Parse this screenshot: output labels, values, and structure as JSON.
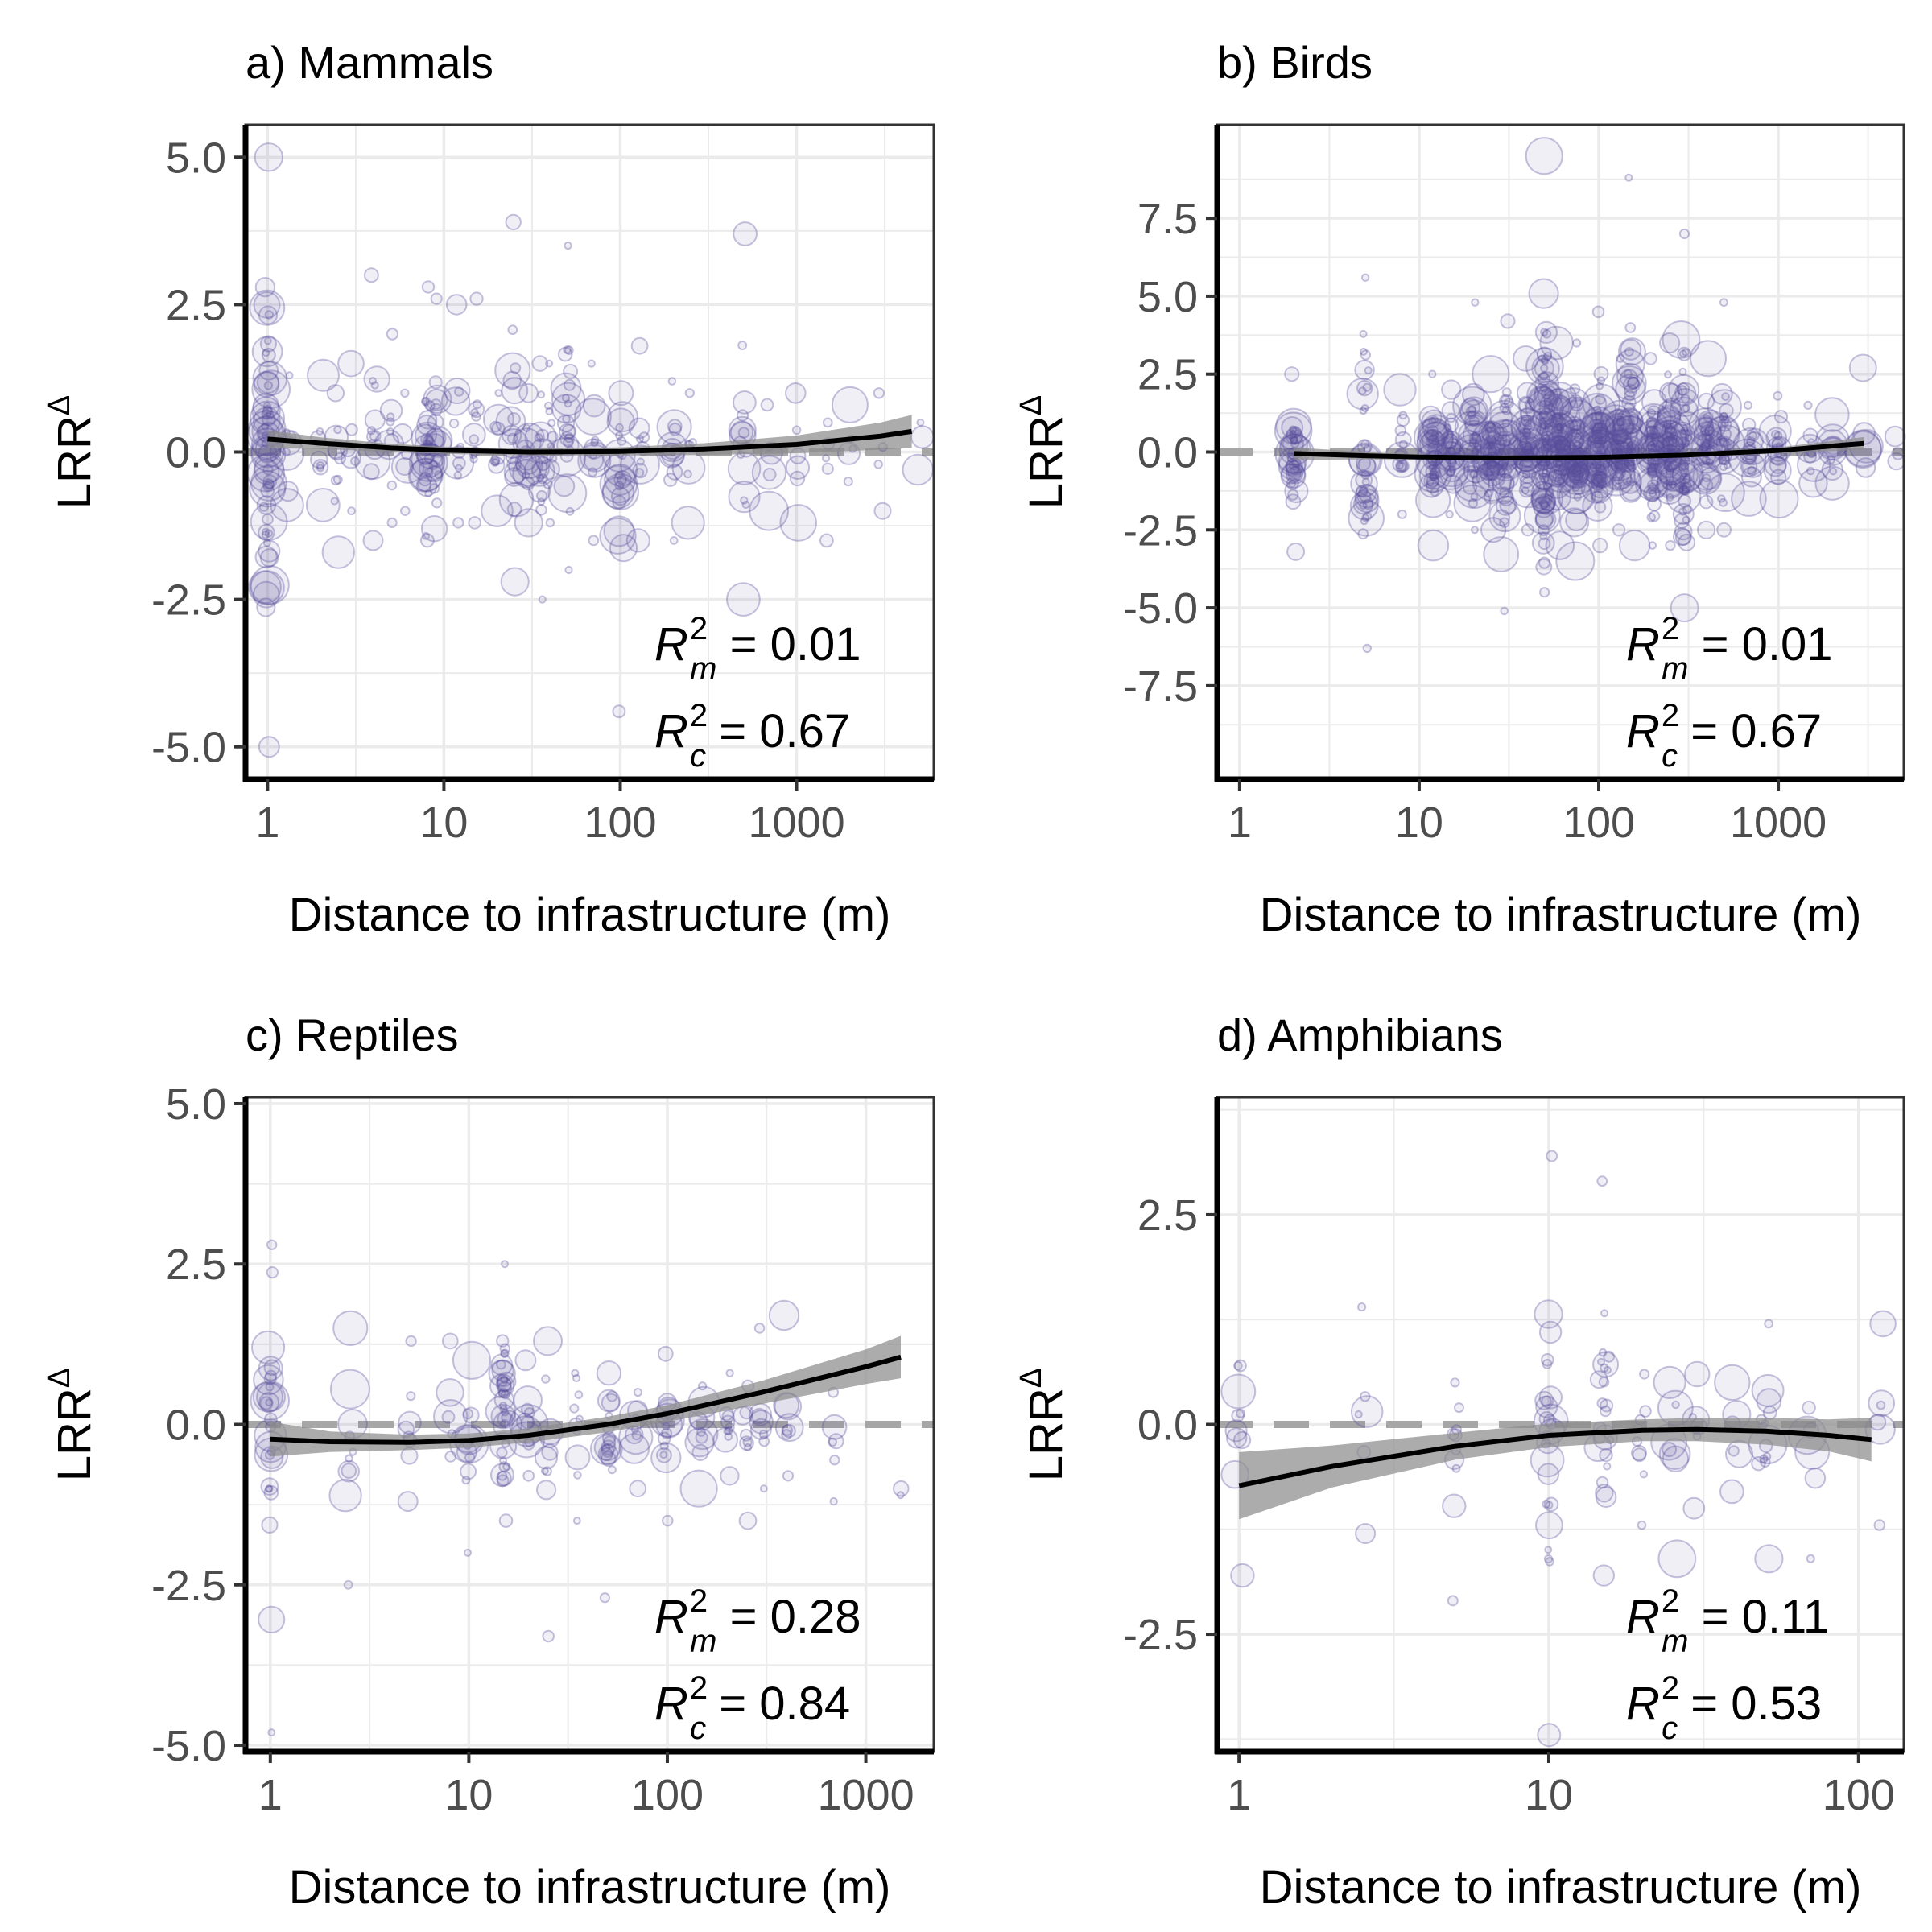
{
  "figure": {
    "colors": {
      "points": "#5a4f9e",
      "fit_line": "#000000",
      "ribbon": "#8c8c8c",
      "reference_line": "#a6a6a6",
      "grid": "#ebebeb",
      "axis": "#000000",
      "tick_label": "#4d4d4d"
    }
  },
  "chart_data": [
    {
      "panel": "a",
      "type": "scatter",
      "title": "a) Mammals",
      "xlabel": "Distance to infrastructure (m)",
      "ylabel": "LRR",
      "ylabel_superscript": "Δ",
      "x_scale": "log10",
      "xlim": [
        0.75,
        6000
      ],
      "ylim": [
        -5.55,
        5.55
      ],
      "x_ticks": [
        1,
        10,
        100,
        1000
      ],
      "x_tick_labels": [
        "1",
        "10",
        "100",
        "1000"
      ],
      "y_ticks": [
        -5,
        -2.5,
        0,
        2.5,
        5
      ],
      "y_tick_labels": [
        "-5.0",
        "-2.5",
        "0.0",
        "2.5",
        "5.0"
      ],
      "reference_line_y": 0,
      "fit": {
        "x": [
          1,
          2,
          5,
          10,
          30,
          100,
          300,
          1000,
          3000,
          4500
        ],
        "y": [
          0.22,
          0.15,
          0.07,
          0.03,
          0.0,
          0.01,
          0.05,
          0.13,
          0.27,
          0.35
        ],
        "lower": [
          0.07,
          0.05,
          0.0,
          -0.03,
          -0.06,
          -0.06,
          -0.05,
          -0.02,
          0.04,
          0.07
        ],
        "upper": [
          0.37,
          0.25,
          0.14,
          0.09,
          0.06,
          0.08,
          0.15,
          0.28,
          0.5,
          0.63
        ]
      },
      "annotations": {
        "r2m_label": "R",
        "r2m_sub": "m",
        "r2m_sup": "2",
        "r2m_value": " = 0.01",
        "r2c_label": "R",
        "r2c_sub": "c",
        "r2c_sup": "2",
        "r2c_value": " = 0.67"
      },
      "point_clusters": [
        {
          "x": 1,
          "y_min": -5.0,
          "y_max": 5.0,
          "n": 70
        },
        {
          "x": 1.3,
          "y_min": -0.9,
          "y_max": 1.3,
          "n": 8
        },
        {
          "x": 2,
          "y_min": -0.9,
          "y_max": 1.3,
          "n": 8
        },
        {
          "x": 2.5,
          "y_min": -1.7,
          "y_max": 1.0,
          "n": 10
        },
        {
          "x": 3,
          "y_min": -1.0,
          "y_max": 1.5,
          "n": 6
        },
        {
          "x": 4,
          "y_min": -1.5,
          "y_max": 3.0,
          "n": 12
        },
        {
          "x": 5,
          "y_min": -1.2,
          "y_max": 2.0,
          "n": 10
        },
        {
          "x": 6,
          "y_min": -1.0,
          "y_max": 1.0,
          "n": 6
        },
        {
          "x": 8,
          "y_min": -1.5,
          "y_max": 2.8,
          "n": 30
        },
        {
          "x": 9,
          "y_min": -1.3,
          "y_max": 2.6,
          "n": 20
        },
        {
          "x": 12,
          "y_min": -1.2,
          "y_max": 2.5,
          "n": 12
        },
        {
          "x": 15,
          "y_min": -1.2,
          "y_max": 2.6,
          "n": 12
        },
        {
          "x": 20,
          "y_min": -1.0,
          "y_max": 1.0,
          "n": 10
        },
        {
          "x": 25,
          "y_min": -2.2,
          "y_max": 3.9,
          "n": 18
        },
        {
          "x": 30,
          "y_min": -1.2,
          "y_max": 1.0,
          "n": 14
        },
        {
          "x": 35,
          "y_min": -2.5,
          "y_max": 1.5,
          "n": 16
        },
        {
          "x": 40,
          "y_min": -1.2,
          "y_max": 1.5,
          "n": 10
        },
        {
          "x": 50,
          "y_min": -2.0,
          "y_max": 3.5,
          "n": 26
        },
        {
          "x": 70,
          "y_min": -1.5,
          "y_max": 1.5,
          "n": 12
        },
        {
          "x": 100,
          "y_min": -4.4,
          "y_max": 1.0,
          "n": 24
        },
        {
          "x": 130,
          "y_min": -1.5,
          "y_max": 1.8,
          "n": 10
        },
        {
          "x": 200,
          "y_min": -1.5,
          "y_max": 1.2,
          "n": 14
        },
        {
          "x": 250,
          "y_min": -1.2,
          "y_max": 1.0,
          "n": 8
        },
        {
          "x": 500,
          "y_min": -2.5,
          "y_max": 3.7,
          "n": 16
        },
        {
          "x": 700,
          "y_min": -1.0,
          "y_max": 0.8,
          "n": 6
        },
        {
          "x": 1000,
          "y_min": -1.2,
          "y_max": 1.0,
          "n": 6
        },
        {
          "x": 1500,
          "y_min": -1.5,
          "y_max": 0.5,
          "n": 5
        },
        {
          "x": 2000,
          "y_min": -0.5,
          "y_max": 0.8,
          "n": 5
        },
        {
          "x": 3000,
          "y_min": -1.0,
          "y_max": 1.0,
          "n": 4
        },
        {
          "x": 5000,
          "y_min": -0.3,
          "y_max": 0.5,
          "n": 3
        }
      ]
    },
    {
      "panel": "b",
      "type": "scatter",
      "title": "b) Birds",
      "xlabel": "Distance to infrastructure (m)",
      "ylabel": "LRR",
      "ylabel_superscript": "Δ",
      "x_scale": "log10",
      "xlim": [
        0.75,
        5000
      ],
      "ylim": [
        -10.5,
        10.5
      ],
      "x_ticks": [
        1,
        10,
        100,
        1000
      ],
      "x_tick_labels": [
        "1",
        "10",
        "100",
        "1000"
      ],
      "y_ticks": [
        -7.5,
        -5,
        -2.5,
        0,
        2.5,
        5,
        7.5
      ],
      "y_tick_labels": [
        "-7.5",
        "-5.0",
        "-2.5",
        "0.0",
        "2.5",
        "5.0",
        "7.5"
      ],
      "reference_line_y": 0,
      "fit": {
        "x": [
          2,
          5,
          10,
          30,
          100,
          300,
          1000,
          3000
        ],
        "y": [
          -0.05,
          -0.12,
          -0.16,
          -0.19,
          -0.17,
          -0.1,
          0.05,
          0.28
        ],
        "lower": [
          -0.25,
          -0.24,
          -0.24,
          -0.25,
          -0.23,
          -0.17,
          -0.05,
          0.08
        ],
        "upper": [
          0.15,
          0.0,
          -0.08,
          -0.13,
          -0.11,
          -0.03,
          0.15,
          0.48
        ]
      },
      "annotations": {
        "r2m_label": "R",
        "r2m_sub": "m",
        "r2m_sup": "2",
        "r2m_value": " = 0.01",
        "r2c_label": "R",
        "r2c_sub": "c",
        "r2c_sup": "2",
        "r2c_value": " = 0.67"
      },
      "point_clusters": [
        {
          "x": 2,
          "y_min": -3.2,
          "y_max": 2.5,
          "n": 40
        },
        {
          "x": 5,
          "y_min": -6.3,
          "y_max": 5.6,
          "n": 40
        },
        {
          "x": 8,
          "y_min": -2.0,
          "y_max": 2.0,
          "n": 15
        },
        {
          "x": 12,
          "y_min": -3.0,
          "y_max": 2.5,
          "n": 50
        },
        {
          "x": 15,
          "y_min": -2.0,
          "y_max": 2.0,
          "n": 30
        },
        {
          "x": 20,
          "y_min": -2.5,
          "y_max": 4.8,
          "n": 40
        },
        {
          "x": 25,
          "y_min": -2.5,
          "y_max": 2.5,
          "n": 40
        },
        {
          "x": 30,
          "y_min": -5.1,
          "y_max": 4.2,
          "n": 40
        },
        {
          "x": 40,
          "y_min": -2.5,
          "y_max": 3.0,
          "n": 50
        },
        {
          "x": 50,
          "y_min": -4.5,
          "y_max": 9.5,
          "n": 90
        },
        {
          "x": 60,
          "y_min": -3.0,
          "y_max": 3.5,
          "n": 60
        },
        {
          "x": 75,
          "y_min": -3.5,
          "y_max": 3.5,
          "n": 60
        },
        {
          "x": 100,
          "y_min": -3.0,
          "y_max": 4.5,
          "n": 80
        },
        {
          "x": 130,
          "y_min": -2.5,
          "y_max": 3.0,
          "n": 50
        },
        {
          "x": 150,
          "y_min": -3.0,
          "y_max": 8.8,
          "n": 50
        },
        {
          "x": 200,
          "y_min": -3.0,
          "y_max": 3.0,
          "n": 60
        },
        {
          "x": 250,
          "y_min": -3.0,
          "y_max": 3.5,
          "n": 60
        },
        {
          "x": 300,
          "y_min": -5.0,
          "y_max": 7.0,
          "n": 60
        },
        {
          "x": 400,
          "y_min": -2.5,
          "y_max": 3.0,
          "n": 40
        },
        {
          "x": 500,
          "y_min": -2.5,
          "y_max": 4.8,
          "n": 30
        },
        {
          "x": 700,
          "y_min": -1.5,
          "y_max": 1.5,
          "n": 20
        },
        {
          "x": 1000,
          "y_min": -1.5,
          "y_max": 1.8,
          "n": 20
        },
        {
          "x": 1500,
          "y_min": -1.0,
          "y_max": 1.5,
          "n": 12
        },
        {
          "x": 2000,
          "y_min": -1.0,
          "y_max": 1.2,
          "n": 10
        },
        {
          "x": 3000,
          "y_min": -0.5,
          "y_max": 2.7,
          "n": 6
        },
        {
          "x": 4500,
          "y_min": -0.3,
          "y_max": 0.5,
          "n": 3
        }
      ]
    },
    {
      "panel": "c",
      "type": "scatter",
      "title": "c) Reptiles",
      "xlabel": "Distance to infrastructure (m)",
      "ylabel": "LRR",
      "ylabel_superscript": "Δ",
      "x_scale": "log10",
      "xlim": [
        0.75,
        2200
      ],
      "ylim": [
        -5.1,
        5.1
      ],
      "x_ticks": [
        1,
        10,
        100,
        1000
      ],
      "x_tick_labels": [
        "1",
        "10",
        "100",
        "1000"
      ],
      "y_ticks": [
        -5,
        -2.5,
        0,
        2.5,
        5
      ],
      "y_tick_labels": [
        "-5.0",
        "-2.5",
        "0.0",
        "2.5",
        "5.0"
      ],
      "reference_line_y": 0,
      "fit": {
        "x": [
          1,
          2,
          5,
          10,
          20,
          50,
          100,
          300,
          1000,
          1500
        ],
        "y": [
          -0.23,
          -0.27,
          -0.28,
          -0.25,
          -0.17,
          0.0,
          0.17,
          0.5,
          0.9,
          1.05
        ],
        "lower": [
          -0.5,
          -0.43,
          -0.4,
          -0.36,
          -0.28,
          -0.12,
          0.04,
          0.32,
          0.63,
          0.72
        ],
        "upper": [
          0.04,
          -0.11,
          -0.16,
          -0.14,
          -0.06,
          0.12,
          0.3,
          0.68,
          1.17,
          1.38
        ]
      },
      "annotations": {
        "r2m_label": "R",
        "r2m_sub": "m",
        "r2m_sup": "2",
        "r2m_value": " = 0.28",
        "r2c_label": "R",
        "r2c_sub": "c",
        "r2c_sup": "2",
        "r2c_value": " = 0.84"
      },
      "point_clusters": [
        {
          "x": 1,
          "y_min": -4.8,
          "y_max": 2.8,
          "n": 30
        },
        {
          "x": 2.5,
          "y_min": -2.5,
          "y_max": 1.5,
          "n": 10
        },
        {
          "x": 5,
          "y_min": -1.2,
          "y_max": 1.3,
          "n": 8
        },
        {
          "x": 8,
          "y_min": -0.5,
          "y_max": 1.3,
          "n": 6
        },
        {
          "x": 10,
          "y_min": -2.0,
          "y_max": 1.0,
          "n": 12
        },
        {
          "x": 15,
          "y_min": -1.5,
          "y_max": 2.5,
          "n": 40
        },
        {
          "x": 20,
          "y_min": -0.8,
          "y_max": 1.0,
          "n": 12
        },
        {
          "x": 25,
          "y_min": -3.3,
          "y_max": 1.3,
          "n": 10
        },
        {
          "x": 35,
          "y_min": -1.5,
          "y_max": 0.8,
          "n": 10
        },
        {
          "x": 50,
          "y_min": -2.7,
          "y_max": 0.8,
          "n": 18
        },
        {
          "x": 70,
          "y_min": -1.0,
          "y_max": 0.5,
          "n": 10
        },
        {
          "x": 100,
          "y_min": -1.5,
          "y_max": 1.1,
          "n": 16
        },
        {
          "x": 150,
          "y_min": -1.0,
          "y_max": 0.6,
          "n": 10
        },
        {
          "x": 200,
          "y_min": -0.8,
          "y_max": 0.8,
          "n": 10
        },
        {
          "x": 250,
          "y_min": -1.5,
          "y_max": 0.6,
          "n": 8
        },
        {
          "x": 300,
          "y_min": -1.0,
          "y_max": 1.5,
          "n": 8
        },
        {
          "x": 400,
          "y_min": -0.8,
          "y_max": 1.7,
          "n": 8
        },
        {
          "x": 700,
          "y_min": -1.2,
          "y_max": 0.5,
          "n": 6
        },
        {
          "x": 1500,
          "y_min": -1.1,
          "y_max": -1.0,
          "n": 2
        }
      ]
    },
    {
      "panel": "d",
      "type": "scatter",
      "title": "d) Amphibians",
      "xlabel": "Distance to infrastructure (m)",
      "ylabel": "LRR",
      "ylabel_superscript": "Δ",
      "x_scale": "log10",
      "xlim": [
        0.85,
        140
      ],
      "ylim": [
        -3.9,
        3.9
      ],
      "x_ticks": [
        1,
        10,
        100
      ],
      "x_tick_labels": [
        "1",
        "10",
        "100"
      ],
      "y_ticks": [
        -2.5,
        0,
        2.5
      ],
      "y_tick_labels": [
        "-2.5",
        "0.0",
        "2.5"
      ],
      "reference_line_y": 0,
      "fit": {
        "x": [
          1,
          2,
          5,
          10,
          20,
          30,
          50,
          80,
          110
        ],
        "y": [
          -0.73,
          -0.5,
          -0.26,
          -0.13,
          -0.07,
          -0.06,
          -0.08,
          -0.13,
          -0.18
        ],
        "lower": [
          -1.13,
          -0.75,
          -0.42,
          -0.27,
          -0.2,
          -0.2,
          -0.24,
          -0.32,
          -0.44
        ],
        "upper": [
          -0.33,
          -0.25,
          -0.1,
          0.01,
          0.06,
          0.08,
          0.08,
          0.06,
          0.08
        ]
      },
      "annotations": {
        "r2m_label": "R",
        "r2m_sub": "m",
        "r2m_sup": "2",
        "r2m_value": " = 0.11",
        "r2c_label": "R",
        "r2c_sub": "c",
        "r2c_sup": "2",
        "r2c_value": " = 0.53"
      },
      "point_clusters": [
        {
          "x": 1,
          "y_min": -1.8,
          "y_max": 0.7,
          "n": 10
        },
        {
          "x": 2.5,
          "y_min": -1.3,
          "y_max": 1.4,
          "n": 6
        },
        {
          "x": 5,
          "y_min": -2.1,
          "y_max": 0.5,
          "n": 10
        },
        {
          "x": 10,
          "y_min": -3.7,
          "y_max": 3.2,
          "n": 26
        },
        {
          "x": 15,
          "y_min": -1.8,
          "y_max": 2.9,
          "n": 24
        },
        {
          "x": 20,
          "y_min": -1.2,
          "y_max": 0.6,
          "n": 8
        },
        {
          "x": 25,
          "y_min": -1.6,
          "y_max": 0.5,
          "n": 8
        },
        {
          "x": 30,
          "y_min": -1.0,
          "y_max": 0.6,
          "n": 6
        },
        {
          "x": 40,
          "y_min": -0.8,
          "y_max": 0.5,
          "n": 6
        },
        {
          "x": 50,
          "y_min": -1.6,
          "y_max": 1.2,
          "n": 14
        },
        {
          "x": 70,
          "y_min": -1.6,
          "y_max": 0.2,
          "n": 6
        },
        {
          "x": 120,
          "y_min": -1.2,
          "y_max": 1.2,
          "n": 6
        }
      ]
    }
  ]
}
